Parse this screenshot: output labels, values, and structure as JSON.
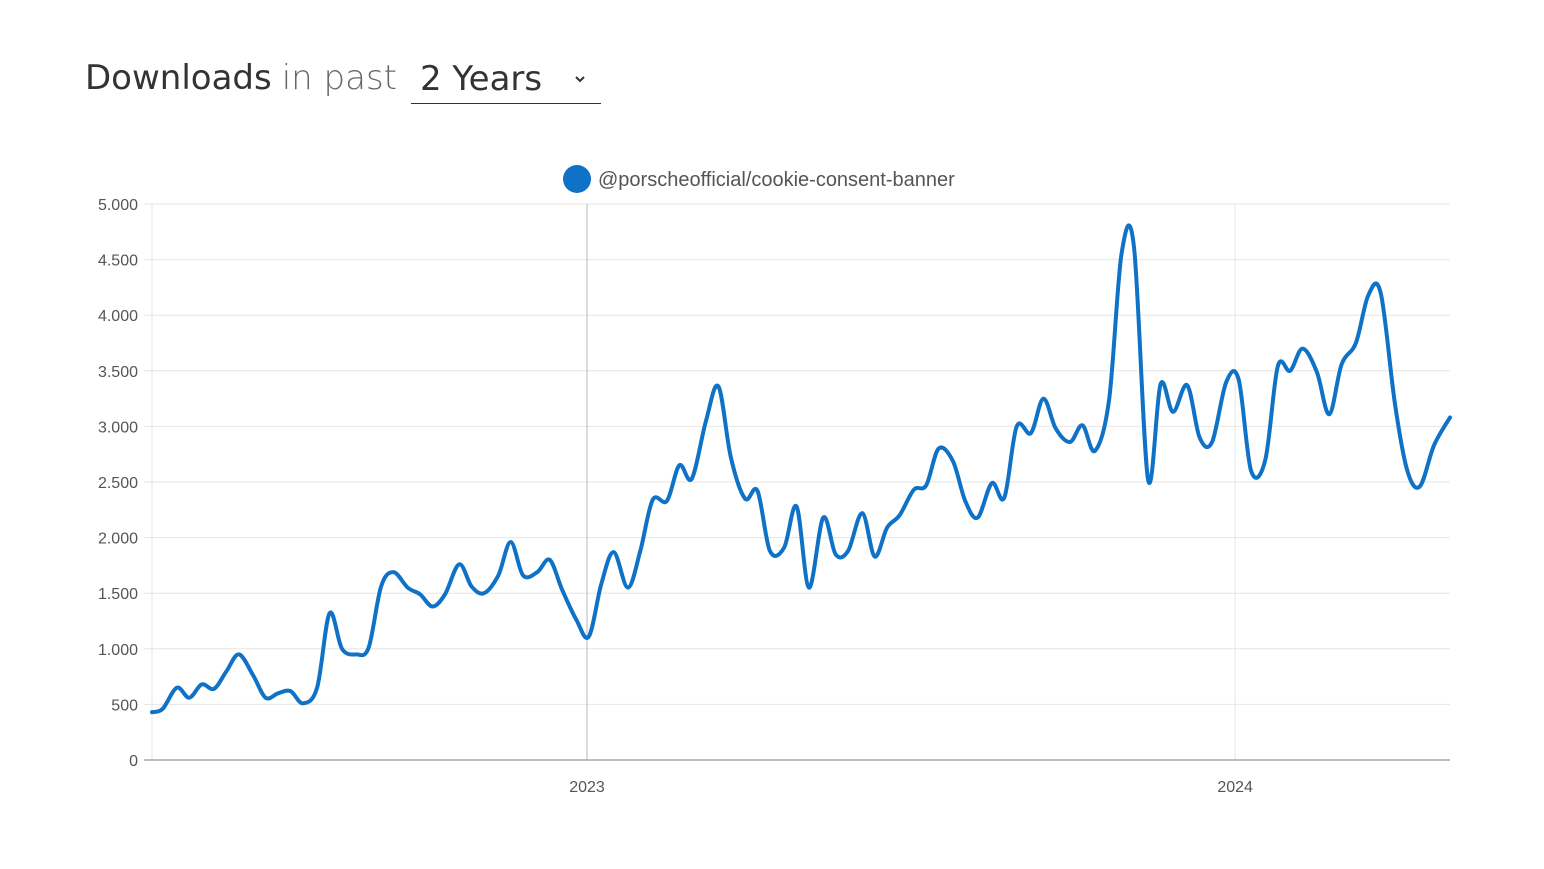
{
  "header": {
    "title": "Downloads",
    "subtitle": "in past",
    "period": {
      "selected": "2 Years",
      "icon": "chevron-down-icon"
    }
  },
  "chart_data": {
    "type": "line",
    "title": "",
    "xlabel": "",
    "ylabel": "",
    "ylim": [
      0,
      5000
    ],
    "yticks": [
      0,
      500,
      1000,
      1500,
      2000,
      2500,
      3000,
      3500,
      4000,
      4500,
      5000
    ],
    "ytick_labels": [
      "0",
      "500",
      "1.000",
      "1.500",
      "2.000",
      "2.500",
      "3.000",
      "3.500",
      "4.000",
      "4.500",
      "5.000"
    ],
    "xlim": [
      "2022-05-01",
      "2024-05-01"
    ],
    "xticks": [
      {
        "date": "2023-01-01",
        "label": "2023"
      },
      {
        "date": "2024-01-01",
        "label": "2024"
      }
    ],
    "grid": true,
    "legend": "top-center",
    "colors": {
      "line": "#0f72c7",
      "legend_marker": "#0f72c7",
      "grid": "#e6e6e6",
      "axis": "#999999"
    },
    "series": [
      {
        "name": "@porscheofficial/cookie-consent-banner",
        "x": [
          "2022-05-01",
          "2022-05-07",
          "2022-05-15",
          "2022-05-22",
          "2022-05-29",
          "2022-06-05",
          "2022-06-12",
          "2022-06-19",
          "2022-06-27",
          "2022-07-04",
          "2022-07-11",
          "2022-07-18",
          "2022-07-25",
          "2022-08-02",
          "2022-08-09",
          "2022-08-16",
          "2022-08-24",
          "2022-08-31",
          "2022-09-07",
          "2022-09-14",
          "2022-09-22",
          "2022-09-29",
          "2022-10-06",
          "2022-10-13",
          "2022-10-21",
          "2022-10-28",
          "2022-11-04",
          "2022-11-12",
          "2022-11-19",
          "2022-11-26",
          "2022-12-04",
          "2022-12-11",
          "2022-12-18",
          "2022-12-26",
          "2023-01-02",
          "2023-01-09",
          "2023-01-16",
          "2023-01-24",
          "2023-01-31",
          "2023-02-07",
          "2023-02-15",
          "2023-02-22",
          "2023-03-01",
          "2023-03-09",
          "2023-03-16",
          "2023-03-23",
          "2023-03-31",
          "2023-04-07",
          "2023-04-14",
          "2023-04-22",
          "2023-04-29",
          "2023-05-06",
          "2023-05-14",
          "2023-05-21",
          "2023-05-28",
          "2023-06-05",
          "2023-06-12",
          "2023-06-19",
          "2023-06-26",
          "2023-07-04",
          "2023-07-11",
          "2023-07-18",
          "2023-07-26",
          "2023-08-02",
          "2023-08-09",
          "2023-08-17",
          "2023-08-24",
          "2023-08-31",
          "2023-09-08",
          "2023-09-15",
          "2023-09-22",
          "2023-09-30",
          "2023-10-07",
          "2023-10-14",
          "2023-10-22",
          "2023-10-29",
          "2023-11-05",
          "2023-11-13",
          "2023-11-20",
          "2023-11-27",
          "2023-12-05",
          "2023-12-12",
          "2023-12-19",
          "2023-12-27",
          "2024-01-03",
          "2024-01-10",
          "2024-01-18",
          "2024-01-25",
          "2024-02-01",
          "2024-02-08",
          "2024-02-16",
          "2024-02-23",
          "2024-03-01",
          "2024-03-09",
          "2024-03-16",
          "2024-03-23",
          "2024-03-31",
          "2024-04-07",
          "2024-04-14",
          "2024-04-22",
          "2024-05-01"
        ],
        "values": [
          430,
          460,
          650,
          560,
          680,
          640,
          800,
          950,
          760,
          560,
          600,
          620,
          510,
          650,
          1320,
          1000,
          950,
          1010,
          1560,
          1690,
          1550,
          1490,
          1380,
          1490,
          1760,
          1560,
          1500,
          1660,
          1960,
          1660,
          1690,
          1800,
          1530,
          1260,
          1110,
          1580,
          1870,
          1550,
          1880,
          2340,
          2330,
          2650,
          2530,
          3050,
          3360,
          2720,
          2350,
          2420,
          1880,
          1910,
          2280,
          1550,
          2180,
          1850,
          1880,
          2220,
          1830,
          2090,
          2200,
          2430,
          2470,
          2800,
          2690,
          2330,
          2180,
          2490,
          2360,
          3000,
          2940,
          3250,
          2980,
          2860,
          3010,
          2780,
          3240,
          4550,
          4620,
          2520,
          3380,
          3130,
          3370,
          2900,
          2860,
          3400,
          3420,
          2600,
          2700,
          3540,
          3500,
          3700,
          3490,
          3110,
          3560,
          3750,
          4180,
          4200,
          3200,
          2600,
          2460,
          2830,
          3080
        ]
      }
    ]
  }
}
